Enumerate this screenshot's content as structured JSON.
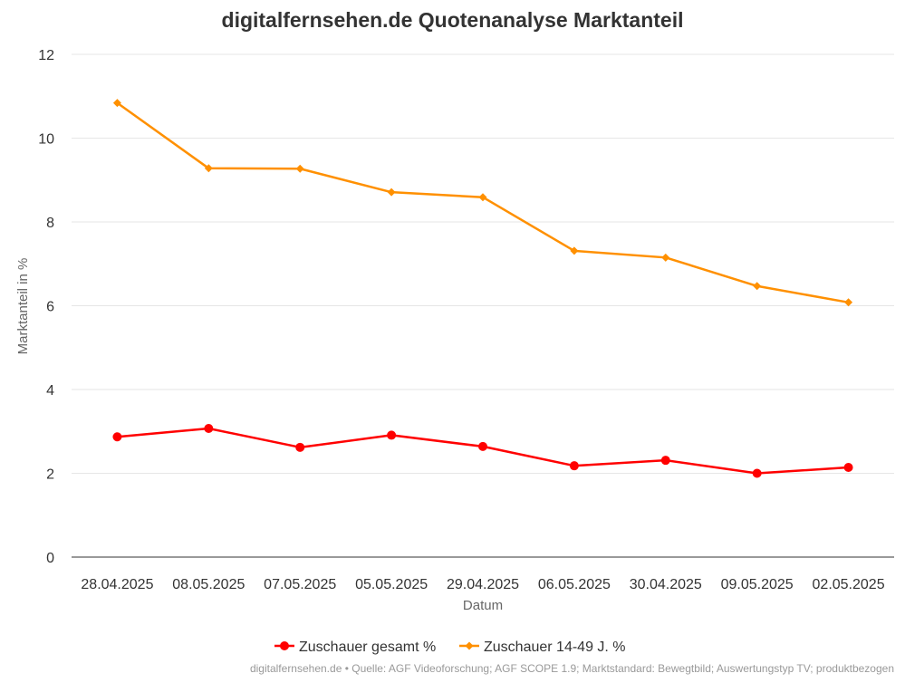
{
  "chart_data": {
    "type": "line",
    "title": "digitalfernsehen.de Quotenanalyse Marktanteil",
    "xlabel": "Datum",
    "ylabel": "Marktanteil in %",
    "categories": [
      "28.04.2025",
      "08.05.2025",
      "07.05.2025",
      "05.05.2025",
      "29.04.2025",
      "06.05.2025",
      "30.04.2025",
      "09.05.2025",
      "02.05.2025"
    ],
    "ylim": [
      0,
      12
    ],
    "yticks": [
      0,
      2,
      4,
      6,
      8,
      10,
      12
    ],
    "grid": true,
    "legend_position": "bottom-center",
    "series": [
      {
        "name": "Zuschauer gesamt %",
        "color": "#ff0000",
        "marker": "circle",
        "values": [
          2.87,
          3.07,
          2.62,
          2.91,
          2.64,
          2.18,
          2.31,
          2.0,
          2.14
        ]
      },
      {
        "name": "Zuschauer 14-49 J. %",
        "color": "#ff9000",
        "marker": "diamond",
        "values": [
          10.84,
          9.28,
          9.27,
          8.71,
          8.59,
          7.31,
          7.15,
          6.47,
          6.08
        ]
      }
    ]
  },
  "credits": "digitalfernsehen.de • Quelle: AGF Videoforschung; AGF SCOPE 1.9; Marktstandard: Bewegtbild; Auswertungstyp TV; produktbezogen"
}
